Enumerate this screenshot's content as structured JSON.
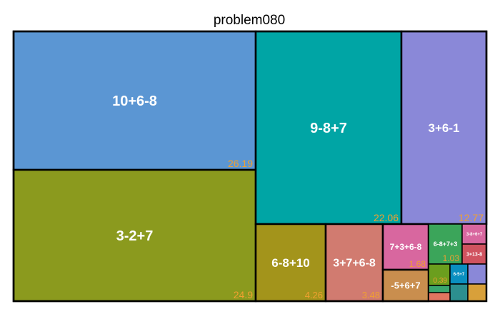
{
  "chart_data": {
    "type": "treemap",
    "title": "problem080",
    "tiles": [
      {
        "label": "10+6-8",
        "value": "26.19",
        "color": "#5b96d3"
      },
      {
        "label": "3-2+7",
        "value": "24.9",
        "color": "#8b9a1e"
      },
      {
        "label": "9-8+7",
        "value": "22.06",
        "color": "#00a5a5"
      },
      {
        "label": "3+6-1",
        "value": "12.77",
        "color": "#8a88d8"
      },
      {
        "label": "6-8+10",
        "value": "4.26",
        "color": "#a3941b"
      },
      {
        "label": "3+7+6-8",
        "value": "3.48",
        "color": "#d17b70"
      },
      {
        "label": "7+3+6-8",
        "value": "1.68",
        "color": "#d8679f"
      },
      {
        "label": "-5+6+7",
        "value": "",
        "color": "#c98e4e"
      },
      {
        "label": "6-8+7+3",
        "value": "1.03",
        "color": "#3ba55a"
      },
      {
        "label": "3-8+6+7",
        "value": "",
        "color": "#d8679f"
      },
      {
        "label": "3+13-8",
        "value": "",
        "color": "#d0535f"
      },
      {
        "label": "",
        "value": "0.39",
        "color": "#6b9e1e"
      },
      {
        "label": "6-5+7",
        "value": "",
        "color": "#0a8fc0"
      },
      {
        "label": "",
        "value": "",
        "color": "#8a88d8"
      },
      {
        "label": "",
        "value": "",
        "color": "#3aa66e"
      },
      {
        "label": "",
        "value": "",
        "color": "#2c8f8f"
      },
      {
        "label": "",
        "value": "",
        "color": "#d8a03a"
      },
      {
        "label": "",
        "value": "",
        "color": "#e07560"
      }
    ]
  }
}
